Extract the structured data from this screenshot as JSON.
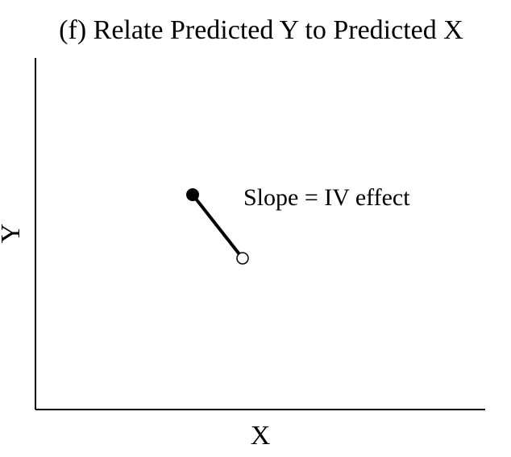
{
  "title": "(f) Relate Predicted Y to Predicted X",
  "x_axis_label": "X",
  "y_axis_label": "Y",
  "annotation": "Slope = IV effect",
  "colors": {
    "ink": "#000000",
    "background": "#ffffff"
  },
  "points": [
    {
      "name": "filled-point",
      "marker": "filled-circle"
    },
    {
      "name": "open-point",
      "marker": "open-circle"
    }
  ]
}
